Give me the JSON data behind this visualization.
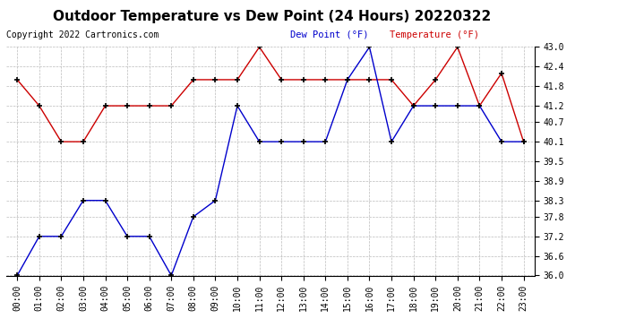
{
  "title": "Outdoor Temperature vs Dew Point (24 Hours) 20220322",
  "copyright": "Copyright 2022 Cartronics.com",
  "legend_dew": "Dew Point (°F)",
  "legend_temp": "Temperature (°F)",
  "hours": [
    "00:00",
    "01:00",
    "02:00",
    "03:00",
    "04:00",
    "05:00",
    "06:00",
    "07:00",
    "08:00",
    "09:00",
    "10:00",
    "11:00",
    "12:00",
    "13:00",
    "14:00",
    "15:00",
    "16:00",
    "17:00",
    "18:00",
    "19:00",
    "20:00",
    "21:00",
    "22:00",
    "23:00"
  ],
  "temperature": [
    42.0,
    41.2,
    40.1,
    40.1,
    41.2,
    41.2,
    41.2,
    41.2,
    42.0,
    42.0,
    42.0,
    43.0,
    42.0,
    42.0,
    42.0,
    42.0,
    42.0,
    42.0,
    41.2,
    42.0,
    43.0,
    41.2,
    42.2,
    40.1
  ],
  "dew_point": [
    36.0,
    37.2,
    37.2,
    38.3,
    38.3,
    37.2,
    37.2,
    36.0,
    37.8,
    38.3,
    41.2,
    40.1,
    40.1,
    40.1,
    40.1,
    42.0,
    43.0,
    40.1,
    41.2,
    41.2,
    41.2,
    41.2,
    40.1,
    40.1
  ],
  "temp_color": "#cc0000",
  "dew_color": "#0000cc",
  "marker": "+",
  "marker_color": "#000000",
  "ylim": [
    36.0,
    43.0
  ],
  "yticks": [
    36.0,
    36.6,
    37.2,
    37.8,
    38.3,
    38.9,
    39.5,
    40.1,
    40.7,
    41.2,
    41.8,
    42.4,
    43.0
  ],
  "bg_color": "#ffffff",
  "grid_color": "#bbbbbb",
  "title_fontsize": 11,
  "tick_fontsize": 7,
  "copyright_fontsize": 7,
  "legend_fontsize": 7.5
}
